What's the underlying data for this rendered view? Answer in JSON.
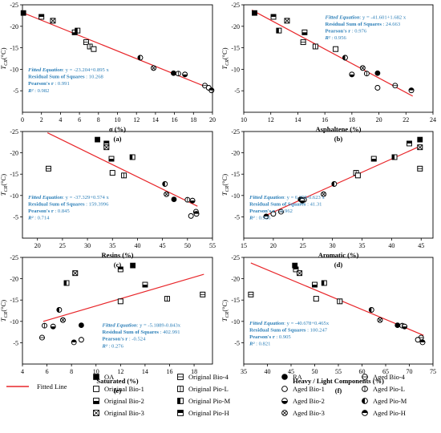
{
  "colors": {
    "fit_line": "#e8262a",
    "eq_text": "#2c7fb8",
    "axis": "#000000",
    "marker_fill": "#000000",
    "marker_stroke": "#000000"
  },
  "legend": {
    "fitted_line": "Fitted Line",
    "items": [
      {
        "label": "OA",
        "marker": "square-filled"
      },
      {
        "label": "Original Bio-1",
        "marker": "square-open"
      },
      {
        "label": "Original Bio-2",
        "marker": "square-bottom-half"
      },
      {
        "label": "Original Bio-3",
        "marker": "square-x"
      },
      {
        "label": "Original Bio-4",
        "marker": "square-hline"
      },
      {
        "label": "Original Pio-L",
        "marker": "square-vline"
      },
      {
        "label": "Original Pio-M",
        "marker": "square-left-half"
      },
      {
        "label": "Original Pio-H",
        "marker": "square-top-half"
      },
      {
        "label": "RA",
        "marker": "circle-filled"
      },
      {
        "label": "Aged Bio-1",
        "marker": "circle-open"
      },
      {
        "label": "Aged Bio-2",
        "marker": "circle-bottom-half"
      },
      {
        "label": "Aged Bio-3",
        "marker": "circle-x"
      },
      {
        "label": "Aged Bio-4",
        "marker": "circle-hline"
      },
      {
        "label": "Aged Pio-L",
        "marker": "circle-vline"
      },
      {
        "label": "Aged Pio-M",
        "marker": "circle-left-half"
      },
      {
        "label": "Aged Pio-H",
        "marker": "circle-top-half"
      }
    ]
  },
  "chart_data": [
    {
      "type": "scatter",
      "panel_label": "(a)",
      "xlabel": "σ (%)",
      "ylabel": "T_CR (°C)",
      "xlim": [
        0,
        20
      ],
      "ylim": [
        -25,
        0
      ],
      "xticks": [
        0,
        2,
        4,
        6,
        8,
        10,
        12,
        14,
        16,
        18,
        20
      ],
      "yticks": [
        -25,
        -20,
        -15,
        -10,
        -5
      ],
      "fit": {
        "intercept": -23.204,
        "slope": 0.895,
        "x_range": [
          0,
          20
        ]
      },
      "equation": {
        "line1_label": "Fitted Equation",
        "line1_value": ": y = -23.204+0.895 x",
        "line2_label": "Residual Sum of Squares",
        "line2_value": " : 10.268",
        "line3_label": "Pearson's r",
        "line3_value": " : 0.991",
        "line4_label": "R²",
        "line4_value": " : 0.982"
      },
      "points": [
        {
          "x": 0.1,
          "y": -23.1,
          "m": "square-filled"
        },
        {
          "x": 2.0,
          "y": -22.2,
          "m": "square-top-half"
        },
        {
          "x": 3.2,
          "y": -21.3,
          "m": "square-x"
        },
        {
          "x": 5.5,
          "y": -18.6,
          "m": "square-bottom-half"
        },
        {
          "x": 5.8,
          "y": -19.0,
          "m": "square-left-half"
        },
        {
          "x": 6.7,
          "y": -16.3,
          "m": "square-hline"
        },
        {
          "x": 7.1,
          "y": -15.3,
          "m": "square-vline"
        },
        {
          "x": 7.5,
          "y": -14.7,
          "m": "square-open"
        },
        {
          "x": 12.4,
          "y": -12.7,
          "m": "circle-left-half"
        },
        {
          "x": 13.8,
          "y": -10.3,
          "m": "circle-x"
        },
        {
          "x": 15.9,
          "y": -9.1,
          "m": "circle-filled"
        },
        {
          "x": 16.4,
          "y": -9.0,
          "m": "circle-vline"
        },
        {
          "x": 17.1,
          "y": -8.8,
          "m": "circle-bottom-half"
        },
        {
          "x": 19.2,
          "y": -6.2,
          "m": "circle-hline"
        },
        {
          "x": 19.6,
          "y": -5.7,
          "m": "circle-open"
        },
        {
          "x": 19.9,
          "y": -5.1,
          "m": "circle-top-half"
        }
      ]
    },
    {
      "type": "scatter",
      "panel_label": "(b)",
      "xlabel": "Asphaltene (%)",
      "ylabel": "T_CR (°C)",
      "xlim": [
        10,
        24
      ],
      "ylim": [
        -25,
        0
      ],
      "xticks": [
        10,
        12,
        14,
        16,
        18,
        20,
        22,
        24
      ],
      "yticks": [
        -25,
        -20,
        -15,
        -10,
        -5
      ],
      "fit": {
        "intercept": -41.601,
        "slope": 1.682,
        "x_range": [
          10.6,
          22.5
        ]
      },
      "equation": {
        "line1_label": "Fitted Equation",
        "line1_value": ": y = -41.601+1.682 x",
        "line2_label": "Residual Sum of Squares",
        "line2_value": " : 24.663",
        "line3_label": "Pearson's r",
        "line3_value": " : 0.976",
        "line4_label": "R²",
        "line4_value": " : 0.956"
      },
      "points": [
        {
          "x": 10.8,
          "y": -23.1,
          "m": "square-filled"
        },
        {
          "x": 12.2,
          "y": -22.2,
          "m": "square-top-half"
        },
        {
          "x": 13.2,
          "y": -21.3,
          "m": "square-x"
        },
        {
          "x": 12.6,
          "y": -19.0,
          "m": "square-left-half"
        },
        {
          "x": 14.5,
          "y": -18.6,
          "m": "square-bottom-half"
        },
        {
          "x": 14.4,
          "y": -16.3,
          "m": "square-hline"
        },
        {
          "x": 15.3,
          "y": -15.3,
          "m": "square-vline"
        },
        {
          "x": 16.8,
          "y": -14.7,
          "m": "square-open"
        },
        {
          "x": 17.5,
          "y": -12.7,
          "m": "circle-left-half"
        },
        {
          "x": 18.8,
          "y": -10.3,
          "m": "circle-x"
        },
        {
          "x": 19.9,
          "y": -9.1,
          "m": "circle-filled"
        },
        {
          "x": 19.1,
          "y": -9.0,
          "m": "circle-vline"
        },
        {
          "x": 18.0,
          "y": -8.8,
          "m": "circle-bottom-half"
        },
        {
          "x": 21.2,
          "y": -6.2,
          "m": "circle-hline"
        },
        {
          "x": 19.9,
          "y": -5.7,
          "m": "circle-open"
        },
        {
          "x": 22.4,
          "y": -5.1,
          "m": "circle-top-half"
        }
      ]
    },
    {
      "type": "scatter",
      "panel_label": "(c)",
      "xlabel": "Resins (%)",
      "ylabel": "T_CR (°C)",
      "xlim": [
        17,
        55
      ],
      "ylim": [
        -25,
        0
      ],
      "xticks": [
        20,
        25,
        30,
        35,
        40,
        45,
        50,
        55
      ],
      "yticks": [
        -25,
        -20,
        -15,
        -10,
        -5
      ],
      "fit": {
        "intercept": -37.329,
        "slope": 0.574,
        "x_range": [
          22,
          52
        ]
      },
      "equation": {
        "line1_label": "Fitted Equation",
        "line1_value": ": y = -37.329+0.574 x",
        "line2_label": "Residual Sum of Squares",
        "line2_value": " : 159.3996",
        "line3_label": "Pearson's r",
        "line3_value": " : 0.845",
        "line4_label": "R²",
        "line4_value": " : 0.714"
      },
      "points": [
        {
          "x": 32.0,
          "y": -23.1,
          "m": "square-filled"
        },
        {
          "x": 33.8,
          "y": -22.2,
          "m": "square-top-half"
        },
        {
          "x": 33.8,
          "y": -21.3,
          "m": "square-x"
        },
        {
          "x": 39.0,
          "y": -19.0,
          "m": "square-left-half"
        },
        {
          "x": 34.8,
          "y": -18.6,
          "m": "square-bottom-half"
        },
        {
          "x": 22.2,
          "y": -16.3,
          "m": "square-hline"
        },
        {
          "x": 37.3,
          "y": -14.7,
          "m": "square-vline"
        },
        {
          "x": 35.0,
          "y": -15.3,
          "m": "square-open"
        },
        {
          "x": 45.5,
          "y": -12.7,
          "m": "circle-left-half"
        },
        {
          "x": 45.8,
          "y": -10.3,
          "m": "circle-x"
        },
        {
          "x": 47.3,
          "y": -9.1,
          "m": "circle-filled"
        },
        {
          "x": 50.0,
          "y": -9.0,
          "m": "circle-vline"
        },
        {
          "x": 51.0,
          "y": -8.8,
          "m": "circle-bottom-half"
        },
        {
          "x": 51.7,
          "y": -6.2,
          "m": "circle-hline"
        },
        {
          "x": 50.7,
          "y": -5.2,
          "m": "circle-open"
        },
        {
          "x": 51.8,
          "y": -5.7,
          "m": "circle-top-half"
        }
      ]
    },
    {
      "type": "scatter",
      "panel_label": "(d)",
      "xlabel": "Aromatic (%)",
      "ylabel": "T_CR (°C)",
      "xlim": [
        15,
        47
      ],
      "ylim": [
        -25,
        0
      ],
      "xticks": [
        15,
        20,
        25,
        30,
        35,
        40,
        45
      ],
      "yticks": [
        -25,
        -20,
        -15,
        -10,
        -5
      ],
      "fit": {
        "intercept": 6.358,
        "slope": -0.623,
        "x_range": [
          19,
          45
        ]
      },
      "equation": {
        "line1_label": "Fitted Equation",
        "line1_value": ": y = 6.358-0.623 x",
        "line2_label": "Residual Sum of Squares",
        "line2_value": " : 41.31",
        "line3_label": "Pearson's r",
        "line3_value": " : -0.962",
        "line4_label": "R²",
        "line4_value": " : 0.926"
      },
      "points": [
        {
          "x": 44.8,
          "y": -23.1,
          "m": "square-filled"
        },
        {
          "x": 43.0,
          "y": -22.2,
          "m": "square-top-half"
        },
        {
          "x": 44.8,
          "y": -21.3,
          "m": "square-x"
        },
        {
          "x": 40.5,
          "y": -19.0,
          "m": "square-left-half"
        },
        {
          "x": 37.0,
          "y": -18.6,
          "m": "square-bottom-half"
        },
        {
          "x": 44.8,
          "y": -16.3,
          "m": "square-hline"
        },
        {
          "x": 34.0,
          "y": -15.3,
          "m": "square-vline"
        },
        {
          "x": 34.3,
          "y": -14.7,
          "m": "square-open"
        },
        {
          "x": 30.3,
          "y": -12.7,
          "m": "circle-left-half"
        },
        {
          "x": 28.5,
          "y": -10.3,
          "m": "circle-x"
        },
        {
          "x": 24.6,
          "y": -9.1,
          "m": "circle-filled"
        },
        {
          "x": 25.2,
          "y": -9.0,
          "m": "circle-vline"
        },
        {
          "x": 24.9,
          "y": -8.8,
          "m": "circle-bottom-half"
        },
        {
          "x": 21.3,
          "y": -6.2,
          "m": "circle-hline"
        },
        {
          "x": 20.0,
          "y": -5.7,
          "m": "circle-open"
        },
        {
          "x": 18.8,
          "y": -5.1,
          "m": "circle-top-half"
        }
      ]
    },
    {
      "type": "scatter",
      "panel_label": "(e)",
      "xlabel": "Saturated (%)",
      "ylabel": "T_CR (°C)",
      "xlim": [
        4,
        19.5
      ],
      "ylim": [
        -25,
        0
      ],
      "xticks": [
        4,
        6,
        8,
        10,
        12,
        14,
        16,
        18
      ],
      "yticks": [
        -25,
        -20,
        -15,
        -10,
        -5
      ],
      "fit": {
        "intercept": -5.1889,
        "slope": -0.843,
        "x_range": [
          5.7,
          18.8
        ]
      },
      "equation": {
        "line1_label": "Fitted Equation",
        "line1_value": ": y = -5.1889-0.843x",
        "line2_label": "Residual Sum of Squares",
        "line2_value": " : 402.991",
        "line3_label": "Pearson's r",
        "line3_value": " : -0.524",
        "line4_label": "R²",
        "line4_value": " : 0.276"
      },
      "points": [
        {
          "x": 13.0,
          "y": -23.1,
          "m": "square-filled"
        },
        {
          "x": 12.0,
          "y": -22.2,
          "m": "square-top-half"
        },
        {
          "x": 8.3,
          "y": -21.3,
          "m": "square-x"
        },
        {
          "x": 7.6,
          "y": -19.0,
          "m": "square-left-half"
        },
        {
          "x": 14.0,
          "y": -18.6,
          "m": "square-bottom-half"
        },
        {
          "x": 18.7,
          "y": -16.3,
          "m": "square-hline"
        },
        {
          "x": 15.8,
          "y": -15.3,
          "m": "square-vline"
        },
        {
          "x": 12.0,
          "y": -14.7,
          "m": "square-open"
        },
        {
          "x": 7.0,
          "y": -12.7,
          "m": "circle-left-half"
        },
        {
          "x": 7.3,
          "y": -10.3,
          "m": "circle-x"
        },
        {
          "x": 8.8,
          "y": -9.1,
          "m": "circle-filled"
        },
        {
          "x": 5.8,
          "y": -9.0,
          "m": "circle-vline"
        },
        {
          "x": 6.5,
          "y": -8.8,
          "m": "circle-bottom-half"
        },
        {
          "x": 5.6,
          "y": -6.2,
          "m": "circle-hline"
        },
        {
          "x": 8.8,
          "y": -5.7,
          "m": "circle-open"
        },
        {
          "x": 8.2,
          "y": -5.1,
          "m": "circle-top-half"
        }
      ]
    },
    {
      "type": "scatter",
      "panel_label": "(f)",
      "xlabel": "Heavy / Light Components (%)",
      "ylabel": "T_CR (°C)",
      "xlim": [
        35,
        75
      ],
      "ylim": [
        -25,
        0
      ],
      "xticks": [
        35,
        40,
        45,
        50,
        55,
        60,
        65,
        70,
        75
      ],
      "yticks": [
        -25,
        -20,
        -15,
        -10,
        -5
      ],
      "fit": {
        "intercept": -40.678,
        "slope": 0.465,
        "x_range": [
          36.5,
          73
        ]
      },
      "equation": {
        "line1_label": "Fitted Equation",
        "line1_value": ": y = -40.678+0.465x",
        "line2_label": "Residual Sum of Squares",
        "line2_value": " : 100.247",
        "line3_label": "Pearson's r",
        "line3_value": " : 0.905",
        "line4_label": "R²",
        "line4_value": " : 0.821"
      },
      "points": [
        {
          "x": 45.8,
          "y": -23.1,
          "m": "square-filled"
        },
        {
          "x": 46.0,
          "y": -22.2,
          "m": "square-top-half"
        },
        {
          "x": 46.8,
          "y": -21.3,
          "m": "square-x"
        },
        {
          "x": 52.0,
          "y": -19.0,
          "m": "square-left-half"
        },
        {
          "x": 50.0,
          "y": -18.6,
          "m": "square-bottom-half"
        },
        {
          "x": 36.5,
          "y": -16.3,
          "m": "square-hline"
        },
        {
          "x": 55.3,
          "y": -14.7,
          "m": "square-vline"
        },
        {
          "x": 50.3,
          "y": -15.3,
          "m": "square-open"
        },
        {
          "x": 62.0,
          "y": -12.7,
          "m": "circle-left-half"
        },
        {
          "x": 63.8,
          "y": -10.3,
          "m": "circle-x"
        },
        {
          "x": 67.5,
          "y": -9.1,
          "m": "circle-filled"
        },
        {
          "x": 68.5,
          "y": -9.0,
          "m": "circle-vline"
        },
        {
          "x": 69.0,
          "y": -8.8,
          "m": "circle-bottom-half"
        },
        {
          "x": 72.5,
          "y": -6.2,
          "m": "circle-hline"
        },
        {
          "x": 71.8,
          "y": -5.7,
          "m": "circle-open"
        },
        {
          "x": 72.8,
          "y": -5.1,
          "m": "circle-top-half"
        }
      ]
    }
  ]
}
